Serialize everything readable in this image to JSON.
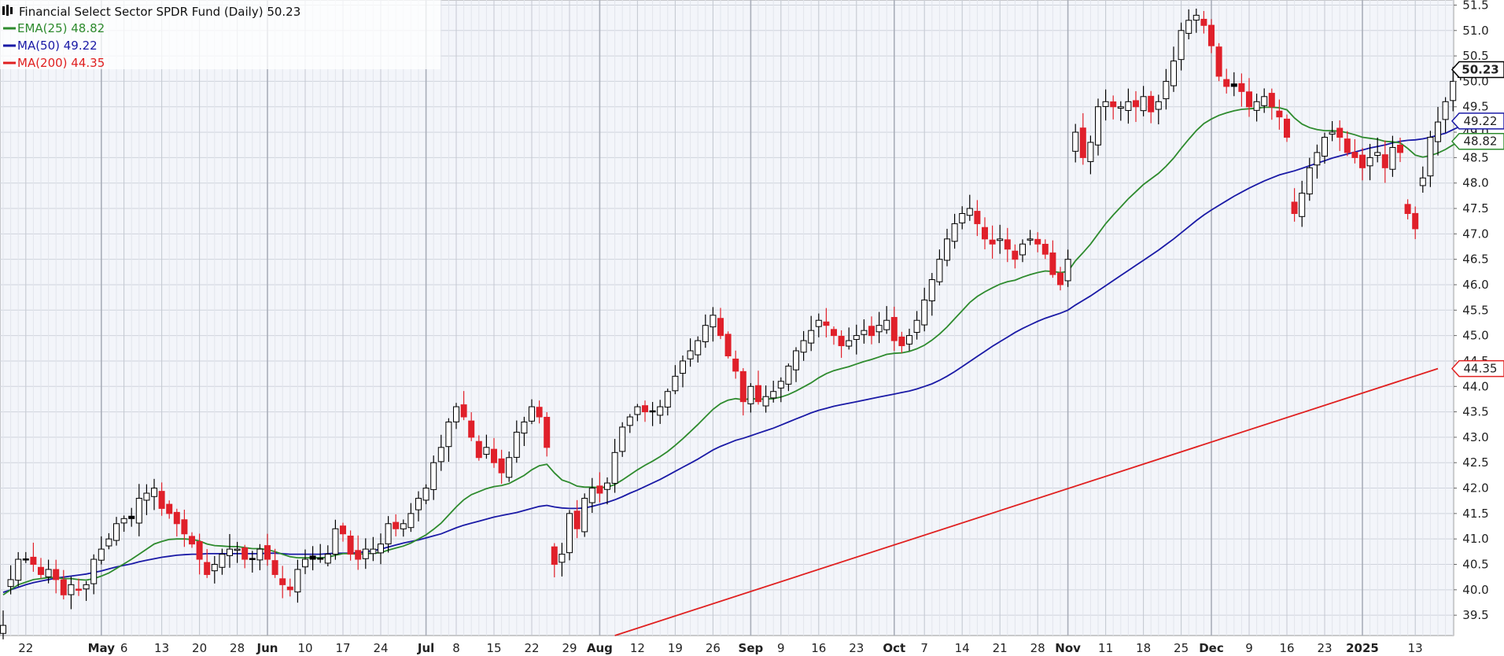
{
  "chart_data": {
    "type": "candlestick",
    "title": "Financial Select Sector SPDR Fund (Daily) 50.23",
    "title_icon": "chart-type-icon",
    "legend": [
      {
        "name": "EMA(25) 48.82",
        "color": "#2e8b2e"
      },
      {
        "name": "MA(50) 49.22",
        "color": "#1a1aa6"
      },
      {
        "name": "MA(200) 44.35",
        "color": "#e02020"
      }
    ],
    "legend_position": "top-left",
    "grid": true,
    "ylim": [
      39.1,
      51.6
    ],
    "y_ticks": [
      "39.5",
      "40.0",
      "40.5",
      "41.0",
      "41.5",
      "42.0",
      "42.5",
      "43.0",
      "43.5",
      "44.0",
      "44.5",
      "45.0",
      "45.5",
      "46.0",
      "46.5",
      "47.0",
      "47.5",
      "48.0",
      "48.5",
      "49.0",
      "49.5",
      "50.0",
      "50.5",
      "51.0",
      "51.5"
    ],
    "x_labels": [
      {
        "i": 3,
        "label": "22",
        "bold": false
      },
      {
        "i": 13,
        "label": "May",
        "bold": true
      },
      {
        "i": 16,
        "label": "6",
        "bold": false
      },
      {
        "i": 21,
        "label": "13",
        "bold": false
      },
      {
        "i": 26,
        "label": "20",
        "bold": false
      },
      {
        "i": 31,
        "label": "28",
        "bold": false
      },
      {
        "i": 35,
        "label": "Jun",
        "bold": true
      },
      {
        "i": 40,
        "label": "10",
        "bold": false
      },
      {
        "i": 45,
        "label": "17",
        "bold": false
      },
      {
        "i": 50,
        "label": "24",
        "bold": false
      },
      {
        "i": 56,
        "label": "Jul",
        "bold": true
      },
      {
        "i": 60,
        "label": "8",
        "bold": false
      },
      {
        "i": 65,
        "label": "15",
        "bold": false
      },
      {
        "i": 70,
        "label": "22",
        "bold": false
      },
      {
        "i": 75,
        "label": "29",
        "bold": false
      },
      {
        "i": 79,
        "label": "Aug",
        "bold": true
      },
      {
        "i": 84,
        "label": "12",
        "bold": false
      },
      {
        "i": 89,
        "label": "19",
        "bold": false
      },
      {
        "i": 94,
        "label": "26",
        "bold": false
      },
      {
        "i": 99,
        "label": "Sep",
        "bold": true
      },
      {
        "i": 103,
        "label": "9",
        "bold": false
      },
      {
        "i": 108,
        "label": "16",
        "bold": false
      },
      {
        "i": 113,
        "label": "23",
        "bold": false
      },
      {
        "i": 118,
        "label": "Oct",
        "bold": true
      },
      {
        "i": 122,
        "label": "7",
        "bold": false
      },
      {
        "i": 127,
        "label": "14",
        "bold": false
      },
      {
        "i": 132,
        "label": "21",
        "bold": false
      },
      {
        "i": 137,
        "label": "28",
        "bold": false
      },
      {
        "i": 141,
        "label": "Nov",
        "bold": true
      },
      {
        "i": 146,
        "label": "11",
        "bold": false
      },
      {
        "i": 151,
        "label": "18",
        "bold": false
      },
      {
        "i": 156,
        "label": "25",
        "bold": false
      },
      {
        "i": 160,
        "label": "Dec",
        "bold": true
      },
      {
        "i": 165,
        "label": "9",
        "bold": false
      },
      {
        "i": 170,
        "label": "16",
        "bold": false
      },
      {
        "i": 175,
        "label": "23",
        "bold": false
      },
      {
        "i": 180,
        "label": "2025",
        "bold": true
      },
      {
        "i": 187,
        "label": "13",
        "bold": false
      }
    ],
    "last_price_label": {
      "value": 50.23,
      "text": "50.23",
      "color": "#000000"
    },
    "ma_labels": [
      {
        "value": 49.22,
        "text": "49.22",
        "color": "#1a1aa6"
      },
      {
        "value": 48.82,
        "text": "48.82",
        "color": "#2e8b2e"
      },
      {
        "value": 44.35,
        "text": "44.35",
        "color": "#e02020"
      }
    ],
    "close": [
      39.3,
      40.2,
      40.6,
      40.6,
      40.5,
      40.3,
      40.4,
      40.2,
      39.9,
      40.1,
      40.0,
      40.1,
      40.6,
      40.8,
      41.0,
      41.3,
      41.4,
      41.4,
      41.8,
      41.9,
      42.0,
      41.6,
      41.5,
      41.3,
      41.1,
      40.9,
      40.6,
      40.3,
      40.5,
      40.7,
      40.8,
      40.8,
      40.6,
      40.6,
      40.8,
      40.6,
      40.3,
      40.1,
      40.0,
      40.4,
      40.6,
      40.6,
      40.6,
      40.7,
      41.2,
      41.1,
      40.7,
      40.6,
      40.8,
      40.8,
      40.9,
      41.3,
      41.2,
      41.3,
      41.5,
      41.8,
      42.0,
      42.5,
      42.8,
      43.3,
      43.6,
      43.4,
      43.0,
      42.6,
      42.8,
      42.5,
      42.3,
      42.6,
      43.1,
      43.3,
      43.6,
      43.4,
      42.8,
      40.5,
      40.7,
      41.5,
      41.2,
      41.8,
      42.0,
      41.9,
      42.1,
      42.7,
      43.2,
      43.4,
      43.6,
      43.5,
      43.5,
      43.6,
      43.9,
      44.2,
      44.5,
      44.7,
      44.9,
      45.2,
      45.4,
      45.0,
      44.6,
      44.3,
      43.7,
      44.0,
      43.7,
      43.8,
      43.9,
      44.1,
      44.4,
      44.7,
      44.9,
      45.1,
      45.3,
      45.2,
      45.0,
      44.8,
      44.9,
      45.0,
      45.1,
      45.0,
      45.2,
      45.3,
      44.9,
      44.8,
      45.0,
      45.3,
      45.7,
      46.1,
      46.5,
      46.9,
      47.2,
      47.4,
      47.5,
      47.2,
      46.9,
      46.8,
      46.9,
      46.7,
      46.5,
      46.8,
      46.9,
      46.8,
      46.6,
      46.2,
      46.0,
      46.5,
      49.0,
      48.5,
      48.8,
      49.5,
      49.6,
      49.5,
      49.5,
      49.6,
      49.5,
      49.7,
      49.4,
      49.6,
      50.0,
      50.4,
      51.0,
      51.2,
      51.3,
      51.1,
      50.7,
      50.1,
      49.9,
      49.9,
      49.8,
      49.5,
      49.6,
      49.7,
      49.5,
      49.3,
      48.9,
      47.4,
      47.8,
      48.3,
      48.6,
      48.9,
      49.0,
      48.9,
      48.6,
      48.5,
      48.3,
      48.5,
      48.6,
      48.3,
      48.7,
      48.6,
      47.4,
      47.1,
      48.1,
      48.9,
      49.2,
      49.6,
      50.0,
      50.23
    ],
    "ema25": [
      39.9,
      40.0,
      40.1,
      40.15,
      40.2,
      40.22,
      40.24,
      40.24,
      40.22,
      40.22,
      40.2,
      40.19,
      40.22,
      40.27,
      40.33,
      40.42,
      40.51,
      40.6,
      40.7,
      40.8,
      40.9,
      40.95,
      40.99,
      41.0,
      41.0,
      40.99,
      40.96,
      40.9,
      40.87,
      40.86,
      40.85,
      40.85,
      40.83,
      40.81,
      40.81,
      40.79,
      40.75,
      40.7,
      40.65,
      40.63,
      40.63,
      40.63,
      40.63,
      40.64,
      40.68,
      40.71,
      40.71,
      40.7,
      40.71,
      40.72,
      40.73,
      40.78,
      40.82,
      40.86,
      40.92,
      41.0,
      41.08,
      41.19,
      41.31,
      41.47,
      41.63,
      41.77,
      41.87,
      41.93,
      41.99,
      42.03,
      42.05,
      42.09,
      42.17,
      42.25,
      42.36,
      42.44,
      42.47,
      42.3,
      42.16,
      42.11,
      42.04,
      42.02,
      42.02,
      42.01,
      42.02,
      42.07,
      42.16,
      42.26,
      42.36,
      42.45,
      42.53,
      42.62,
      42.72,
      42.84,
      42.97,
      43.11,
      43.25,
      43.4,
      43.55,
      43.66,
      43.73,
      43.76,
      43.74,
      43.76,
      43.75,
      43.75,
      43.76,
      43.79,
      43.84,
      43.91,
      43.99,
      44.07,
      44.17,
      44.25,
      44.31,
      44.35,
      44.39,
      44.44,
      44.49,
      44.53,
      44.58,
      44.63,
      44.65,
      44.66,
      44.69,
      44.74,
      44.81,
      44.91,
      45.03,
      45.17,
      45.33,
      45.49,
      45.65,
      45.77,
      45.86,
      45.94,
      46.01,
      46.06,
      46.09,
      46.15,
      46.2,
      46.24,
      46.27,
      46.26,
      46.24,
      46.26,
      46.47,
      46.63,
      46.8,
      47.0,
      47.2,
      47.37,
      47.53,
      47.69,
      47.83,
      47.97,
      48.08,
      48.19,
      48.33,
      48.49,
      48.68,
      48.86,
      49.03,
      49.17,
      49.26,
      49.33,
      49.38,
      49.42,
      49.45,
      49.46,
      49.47,
      49.49,
      49.49,
      49.48,
      49.44,
      49.28,
      49.16,
      49.09,
      49.05,
      49.03,
      49.03,
      49.02,
      48.99,
      48.95,
      48.9,
      48.88,
      48.86,
      48.82,
      48.81,
      48.79,
      48.68,
      48.55,
      48.51,
      48.54,
      48.59,
      48.66,
      48.75,
      48.82
    ],
    "ma50": [
      39.95,
      40.0,
      40.05,
      40.1,
      40.14,
      40.17,
      40.2,
      40.23,
      40.25,
      40.27,
      40.29,
      40.31,
      40.34,
      40.37,
      40.41,
      40.45,
      40.48,
      40.51,
      40.55,
      40.58,
      40.61,
      40.64,
      40.66,
      40.68,
      40.69,
      40.7,
      40.7,
      40.71,
      40.71,
      40.71,
      40.71,
      40.71,
      40.71,
      40.71,
      40.71,
      40.72,
      40.72,
      40.71,
      40.7,
      40.7,
      40.7,
      40.7,
      40.7,
      40.71,
      40.72,
      40.72,
      40.72,
      40.73,
      40.75,
      40.77,
      40.8,
      40.84,
      40.88,
      40.92,
      40.95,
      40.98,
      41.02,
      41.06,
      41.1,
      41.16,
      41.22,
      41.27,
      41.31,
      41.35,
      41.39,
      41.43,
      41.46,
      41.49,
      41.52,
      41.56,
      41.6,
      41.64,
      41.66,
      41.63,
      41.61,
      41.6,
      41.6,
      41.61,
      41.64,
      41.68,
      41.72,
      41.77,
      41.83,
      41.9,
      41.96,
      42.03,
      42.1,
      42.17,
      42.25,
      42.33,
      42.41,
      42.49,
      42.57,
      42.66,
      42.75,
      42.82,
      42.88,
      42.94,
      42.98,
      43.03,
      43.08,
      43.13,
      43.18,
      43.24,
      43.3,
      43.36,
      43.42,
      43.48,
      43.53,
      43.57,
      43.61,
      43.64,
      43.67,
      43.7,
      43.73,
      43.76,
      43.79,
      43.82,
      43.85,
      43.88,
      43.91,
      43.95,
      44.0,
      44.05,
      44.12,
      44.2,
      44.29,
      44.39,
      44.49,
      44.59,
      44.69,
      44.79,
      44.88,
      44.97,
      45.06,
      45.14,
      45.21,
      45.28,
      45.34,
      45.39,
      45.44,
      45.5,
      45.6,
      45.69,
      45.78,
      45.88,
      45.98,
      46.08,
      46.18,
      46.28,
      46.38,
      46.48,
      46.58,
      46.68,
      46.79,
      46.9,
      47.02,
      47.14,
      47.26,
      47.37,
      47.47,
      47.56,
      47.65,
      47.74,
      47.82,
      47.9,
      47.97,
      48.04,
      48.1,
      48.16,
      48.2,
      48.24,
      48.29,
      48.34,
      48.39,
      48.44,
      48.49,
      48.53,
      48.57,
      48.61,
      48.65,
      48.69,
      48.72,
      48.75,
      48.79,
      48.82,
      48.84,
      48.85,
      48.87,
      48.9,
      48.94,
      48.98,
      49.05,
      49.12,
      49.22
    ],
    "ma200_points": [
      [
        81,
        39.1
      ],
      [
        190,
        44.35
      ]
    ]
  }
}
